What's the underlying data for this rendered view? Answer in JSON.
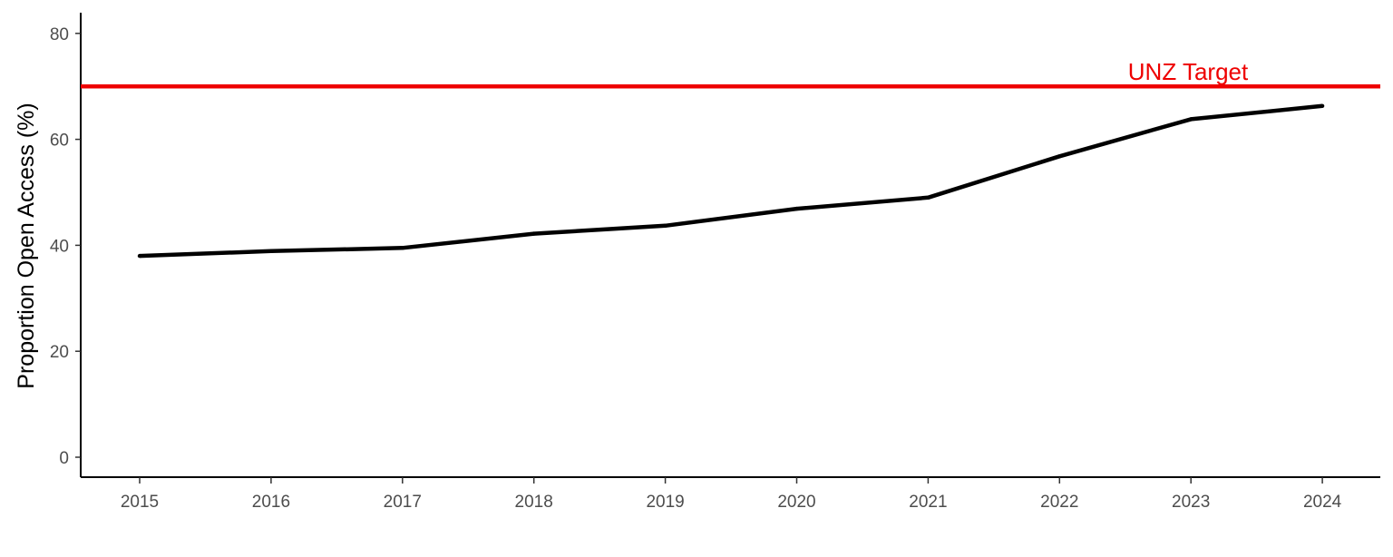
{
  "chart_data": {
    "type": "line",
    "title": "",
    "xlabel": "",
    "ylabel": "Proportion Open Access (%)",
    "x": [
      2015,
      2016,
      2017,
      2018,
      2019,
      2020,
      2021,
      2022,
      2023,
      2024
    ],
    "x_tick_labels": [
      "2015",
      "2016",
      "2017",
      "2018",
      "2019",
      "2020",
      "2021",
      "2022",
      "2023",
      "2024"
    ],
    "series": [
      {
        "values": [
          38.0,
          38.9,
          39.5,
          42.2,
          43.7,
          46.9,
          49.0,
          56.8,
          63.8,
          66.3
        ],
        "color": "#000000"
      }
    ],
    "ylim": [
      0,
      84
    ],
    "yticks": [
      0,
      20,
      40,
      60,
      80
    ],
    "y_tick_labels": [
      "0",
      "20",
      "40",
      "60",
      "80"
    ],
    "grid": false,
    "reference_line": {
      "y": 70,
      "label": "UNZ Target",
      "color": "#ee0000"
    }
  }
}
